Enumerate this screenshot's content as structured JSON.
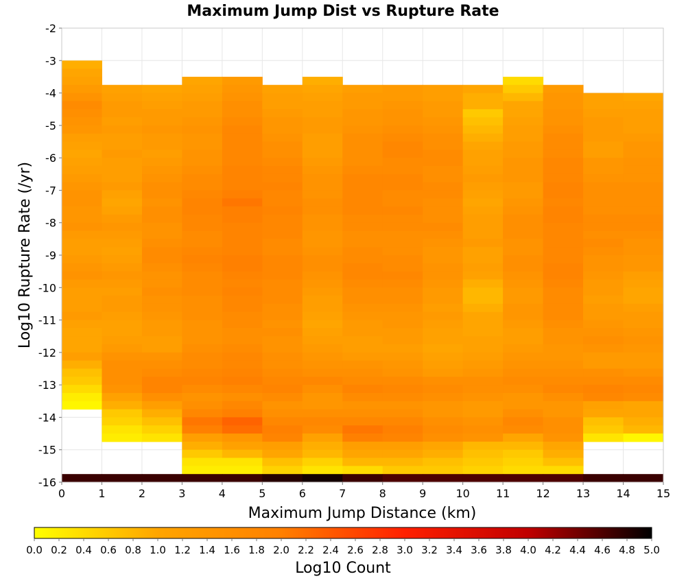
{
  "chart_data": {
    "type": "heatmap",
    "title": "Maximum Jump Dist vs Rupture Rate",
    "xlabel": "Maximum Jump Distance (km)",
    "ylabel": "Log10 Rupture Rate (/yr)",
    "xlim": [
      0,
      15
    ],
    "ylim": [
      -16,
      -2
    ],
    "x_ticks": [
      "0",
      "1",
      "2",
      "3",
      "4",
      "5",
      "6",
      "7",
      "8",
      "9",
      "10",
      "11",
      "12",
      "13",
      "14",
      "15"
    ],
    "y_ticks": [
      "-2",
      "-3",
      "-4",
      "-5",
      "-6",
      "-7",
      "-8",
      "-9",
      "-10",
      "-11",
      "-12",
      "-13",
      "-14",
      "-15",
      "-16"
    ],
    "x_bin_width": 1,
    "y_bin_width": 0.25,
    "colorbar": {
      "label": "Log10 Count",
      "range": [
        0,
        5
      ],
      "ticks": [
        "0.0",
        "0.2",
        "0.4",
        "0.6",
        "0.8",
        "1.0",
        "1.2",
        "1.4",
        "1.6",
        "1.8",
        "2.0",
        "2.2",
        "2.4",
        "2.6",
        "2.8",
        "3.0",
        "3.2",
        "3.4",
        "3.6",
        "3.8",
        "4.0",
        "4.2",
        "4.4",
        "4.6",
        "4.8",
        "5.0"
      ],
      "colormap": [
        "#ffff00",
        "#ffa500",
        "#ff8000",
        "#ff2000",
        "#c00000",
        "#000000"
      ]
    },
    "grid": true,
    "bottom_row": {
      "y": -16,
      "values": [
        4.7,
        4.7,
        4.7,
        4.7,
        4.7,
        4.8,
        4.9,
        4.7,
        4.6,
        4.6,
        4.6,
        4.6,
        4.6,
        4.7,
        4.7
      ]
    },
    "columns": [
      {
        "x": 0.5,
        "top": -3.0,
        "values": [
          0.9,
          1.0,
          1.1,
          1.3,
          1.5,
          1.7,
          1.6,
          1.5,
          1.4,
          1.2,
          1.1,
          1.0,
          1.1,
          1.2,
          1.3,
          1.4,
          1.5,
          1.5,
          1.4,
          1.4,
          1.5,
          1.3,
          1.2,
          1.2,
          1.3,
          1.4,
          1.5,
          1.3,
          1.2,
          1.2,
          1.2,
          1.3,
          1.1,
          1.0,
          1.0,
          1.0,
          1.2,
          0.9,
          0.7,
          0.6,
          0.4,
          0.2,
          0.1
        ]
      },
      {
        "x": 1.5,
        "top": -3.75,
        "values": [
          1.1,
          1.2,
          1.3,
          1.3,
          1.2,
          1.3,
          1.2,
          1.2,
          1.3,
          1.2,
          1.2,
          1.2,
          1.3,
          1.1,
          1.0,
          1.1,
          1.3,
          1.4,
          1.3,
          1.2,
          1.1,
          1.2,
          1.3,
          1.4,
          1.3,
          1.2,
          1.3,
          1.3,
          1.2,
          1.1,
          1.1,
          1.2,
          1.3,
          1.5,
          1.6,
          1.6,
          1.6,
          1.5,
          1.1,
          0.9,
          0.6,
          0.5,
          0.3,
          0.2
        ]
      },
      {
        "x": 2.5,
        "top": -3.75,
        "values": [
          1.0,
          1.1,
          1.2,
          1.3,
          1.3,
          1.4,
          1.3,
          1.3,
          1.2,
          1.3,
          1.4,
          1.5,
          1.6,
          1.6,
          1.5,
          1.6,
          1.6,
          1.5,
          1.5,
          1.6,
          1.7,
          1.7,
          1.6,
          1.5,
          1.5,
          1.6,
          1.5,
          1.5,
          1.4,
          1.3,
          1.3,
          1.2,
          1.2,
          1.5,
          1.6,
          1.7,
          1.9,
          1.9,
          1.6,
          1.2,
          0.9,
          0.7,
          0.5,
          0.3
        ]
      },
      {
        "x": 3.5,
        "top": -3.5,
        "values": [
          1.0,
          1.1,
          1.2,
          1.3,
          1.3,
          1.4,
          1.5,
          1.4,
          1.4,
          1.5,
          1.5,
          1.6,
          1.7,
          1.7,
          1.8,
          1.9,
          1.9,
          1.8,
          1.8,
          1.7,
          1.7,
          1.8,
          1.9,
          1.8,
          1.7,
          1.7,
          1.7,
          1.6,
          1.6,
          1.6,
          1.5,
          1.5,
          1.5,
          1.6,
          1.7,
          1.7,
          1.8,
          1.9,
          1.7,
          1.5,
          1.6,
          1.8,
          2.1,
          2.0,
          1.2,
          0.9,
          0.6,
          0.3,
          0.2
        ]
      },
      {
        "x": 4.5,
        "top": -3.5,
        "values": [
          1.3,
          1.4,
          1.5,
          1.6,
          1.6,
          1.7,
          1.8,
          1.8,
          1.8,
          1.8,
          1.8,
          1.9,
          1.9,
          1.9,
          2.0,
          2.1,
          2.0,
          2.0,
          1.9,
          1.9,
          1.9,
          1.9,
          2.0,
          2.0,
          1.9,
          1.8,
          1.9,
          1.8,
          1.8,
          1.7,
          1.7,
          1.6,
          1.6,
          1.7,
          1.8,
          1.8,
          1.9,
          2.0,
          1.8,
          1.6,
          1.8,
          2.0,
          2.3,
          2.2,
          1.4,
          1.1,
          0.8,
          0.3,
          0.2
        ]
      },
      {
        "x": 5.5,
        "top": -3.75,
        "values": [
          1.1,
          1.2,
          1.2,
          1.3,
          1.4,
          1.4,
          1.5,
          1.6,
          1.6,
          1.7,
          1.8,
          1.8,
          1.9,
          1.8,
          1.8,
          1.9,
          1.8,
          1.8,
          1.8,
          1.7,
          1.7,
          1.8,
          1.8,
          1.8,
          1.7,
          1.7,
          1.7,
          1.6,
          1.6,
          1.5,
          1.6,
          1.5,
          1.5,
          1.6,
          1.6,
          1.7,
          1.8,
          1.9,
          1.7,
          1.5,
          1.6,
          1.8,
          2.0,
          1.9,
          1.2,
          1.0,
          0.7,
          0.5,
          0.4
        ]
      },
      {
        "x": 6.5,
        "top": -3.5,
        "values": [
          0.9,
          1.0,
          1.1,
          1.2,
          1.2,
          1.3,
          1.3,
          1.2,
          1.2,
          1.2,
          1.3,
          1.4,
          1.5,
          1.5,
          1.5,
          1.6,
          1.6,
          1.5,
          1.5,
          1.4,
          1.4,
          1.5,
          1.6,
          1.6,
          1.5,
          1.4,
          1.3,
          1.2,
          1.2,
          1.1,
          1.0,
          1.1,
          1.2,
          1.3,
          1.4,
          1.5,
          1.6,
          1.8,
          1.6,
          1.4,
          1.4,
          1.6,
          1.8,
          1.7,
          1.1,
          0.9,
          0.8,
          0.5,
          0.3
        ]
      },
      {
        "x": 7.5,
        "top": -3.75,
        "values": [
          1.2,
          1.3,
          1.3,
          1.4,
          1.4,
          1.5,
          1.6,
          1.6,
          1.6,
          1.6,
          1.7,
          1.8,
          1.8,
          1.8,
          1.8,
          1.8,
          1.7,
          1.7,
          1.6,
          1.6,
          1.7,
          1.7,
          1.8,
          1.8,
          1.7,
          1.6,
          1.6,
          1.5,
          1.4,
          1.3,
          1.3,
          1.2,
          1.2,
          1.3,
          1.5,
          1.6,
          1.7,
          1.9,
          1.7,
          1.5,
          1.6,
          1.8,
          2.1,
          2.0,
          1.2,
          1.0,
          0.8,
          0.4
        ]
      },
      {
        "x": 8.5,
        "top": -3.75,
        "values": [
          1.3,
          1.3,
          1.4,
          1.5,
          1.5,
          1.6,
          1.7,
          1.8,
          1.8,
          1.7,
          1.7,
          1.8,
          1.8,
          1.7,
          1.7,
          1.8,
          1.7,
          1.7,
          1.6,
          1.6,
          1.6,
          1.7,
          1.7,
          1.8,
          1.7,
          1.6,
          1.6,
          1.5,
          1.4,
          1.4,
          1.3,
          1.3,
          1.2,
          1.3,
          1.4,
          1.5,
          1.7,
          1.8,
          1.7,
          1.5,
          1.6,
          1.8,
          2.0,
          1.9,
          1.2,
          1.0,
          0.8,
          0.6
        ]
      },
      {
        "x": 9.5,
        "top": -3.75,
        "values": [
          1.2,
          1.2,
          1.3,
          1.3,
          1.4,
          1.5,
          1.6,
          1.6,
          1.7,
          1.7,
          1.6,
          1.6,
          1.7,
          1.7,
          1.6,
          1.6,
          1.6,
          1.7,
          1.6,
          1.5,
          1.4,
          1.4,
          1.5,
          1.5,
          1.4,
          1.3,
          1.3,
          1.2,
          1.3,
          1.2,
          1.1,
          1.1,
          1.0,
          1.1,
          1.2,
          1.3,
          1.6,
          1.7,
          1.6,
          1.4,
          1.4,
          1.6,
          1.7,
          1.6,
          1.0,
          0.9,
          0.7,
          0.6
        ]
      },
      {
        "x": 10.5,
        "top": -3.75,
        "values": [
          1.0,
          0.9,
          0.9,
          0.6,
          0.7,
          0.8,
          0.9,
          1.0,
          1.1,
          1.1,
          1.2,
          1.3,
          1.2,
          1.1,
          1.0,
          1.1,
          1.2,
          1.2,
          1.2,
          1.3,
          1.1,
          1.1,
          1.2,
          1.1,
          0.9,
          0.8,
          0.8,
          0.9,
          1.0,
          1.0,
          1.0,
          1.1,
          1.1,
          1.2,
          1.3,
          1.4,
          1.6,
          1.6,
          1.5,
          1.3,
          1.3,
          1.5,
          1.6,
          1.5,
          0.8,
          0.7,
          0.6,
          0.5
        ]
      },
      {
        "x": 11.5,
        "top": -3.5,
        "values": [
          0.4,
          0.6,
          0.8,
          1.0,
          1.0,
          1.1,
          1.2,
          1.2,
          1.3,
          1.3,
          1.4,
          1.4,
          1.4,
          1.3,
          1.3,
          1.4,
          1.5,
          1.6,
          1.6,
          1.6,
          1.5,
          1.5,
          1.6,
          1.6,
          1.5,
          1.4,
          1.3,
          1.3,
          1.4,
          1.4,
          1.3,
          1.2,
          1.2,
          1.3,
          1.4,
          1.5,
          1.6,
          1.7,
          1.6,
          1.4,
          1.4,
          1.6,
          1.8,
          1.7,
          1.0,
          0.8,
          0.6,
          0.5,
          0.4
        ]
      },
      {
        "x": 12.5,
        "top": -3.75,
        "values": [
          1.3,
          1.4,
          1.4,
          1.5,
          1.5,
          1.6,
          1.7,
          1.7,
          1.7,
          1.8,
          1.8,
          1.8,
          1.9,
          1.9,
          1.8,
          1.9,
          1.9,
          1.8,
          1.8,
          1.8,
          1.8,
          1.8,
          1.9,
          1.9,
          1.8,
          1.7,
          1.7,
          1.7,
          1.7,
          1.6,
          1.5,
          1.5,
          1.4,
          1.4,
          1.5,
          1.6,
          1.7,
          1.8,
          1.6,
          1.4,
          1.4,
          1.6,
          1.6,
          1.5,
          1.0,
          0.9,
          0.7,
          0.4
        ]
      },
      {
        "x": 13.5,
        "top": -4.0,
        "values": [
          1.1,
          1.1,
          1.2,
          1.3,
          1.3,
          1.3,
          1.2,
          1.2,
          1.4,
          1.4,
          1.5,
          1.6,
          1.6,
          1.6,
          1.6,
          1.7,
          1.7,
          1.6,
          1.7,
          1.6,
          1.5,
          1.5,
          1.4,
          1.3,
          1.3,
          1.2,
          1.3,
          1.3,
          1.4,
          1.5,
          1.6,
          1.5,
          1.3,
          1.3,
          1.6,
          1.7,
          1.9,
          1.8,
          1.1,
          1.0,
          0.7,
          0.6,
          0.3
        ]
      },
      {
        "x": 14.5,
        "top": -4.0,
        "values": [
          1.0,
          1.1,
          1.2,
          1.2,
          1.2,
          1.3,
          1.4,
          1.4,
          1.5,
          1.5,
          1.5,
          1.6,
          1.6,
          1.6,
          1.6,
          1.7,
          1.7,
          1.6,
          1.5,
          1.5,
          1.4,
          1.4,
          1.2,
          1.1,
          1.0,
          1.0,
          1.2,
          1.3,
          1.3,
          1.4,
          1.5,
          1.4,
          1.3,
          1.3,
          1.5,
          1.7,
          1.8,
          1.7,
          1.0,
          1.0,
          0.9,
          0.8,
          0.1
        ]
      }
    ]
  }
}
